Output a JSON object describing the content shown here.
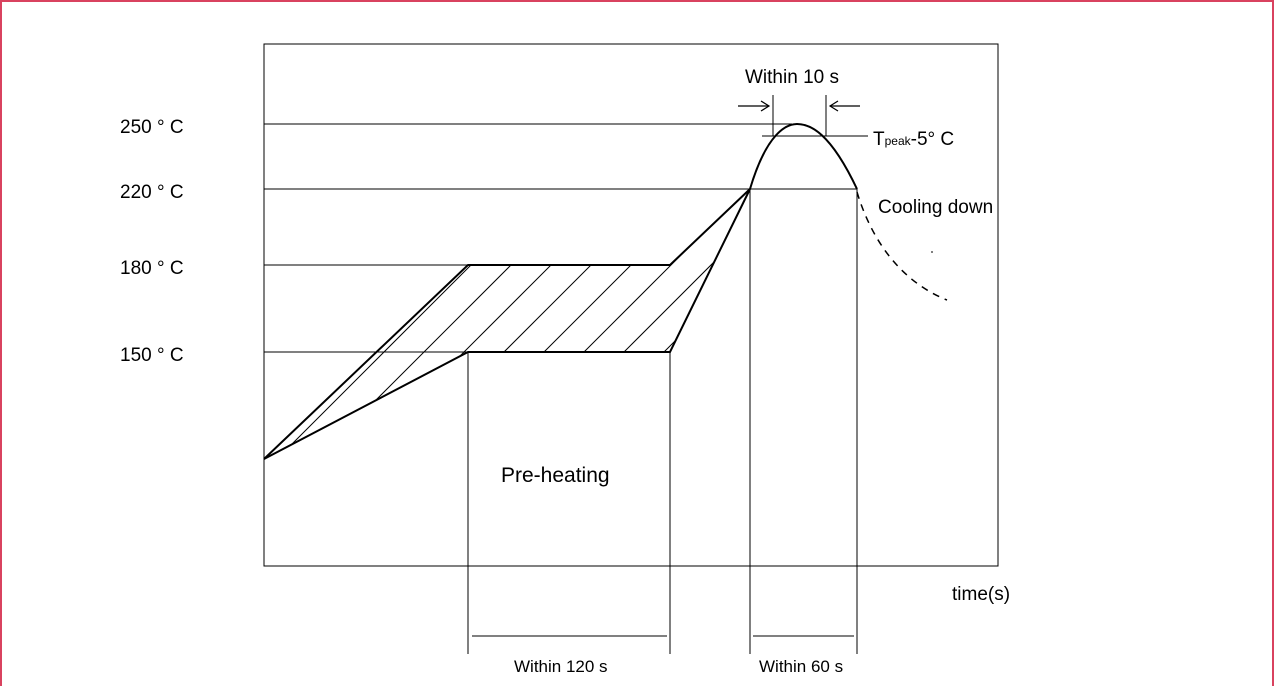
{
  "frame": {
    "border_color": "#d9425f"
  },
  "y_labels": {
    "t250": "250 °  C",
    "t220": "220 °  C",
    "t180": "180 °  C",
    "t150": "150 °  C"
  },
  "annotations": {
    "within_10s": "Within 10 s",
    "tpeak_main": "T",
    "tpeak_sub": "peak",
    "tpeak_rest": "-5°  C",
    "cooling_down": "Cooling down",
    "pre_heating": "Pre-heating",
    "time_axis": "time(s)",
    "within_120s": "Within 120 s",
    "within_60s": "Within 60 s"
  }
}
